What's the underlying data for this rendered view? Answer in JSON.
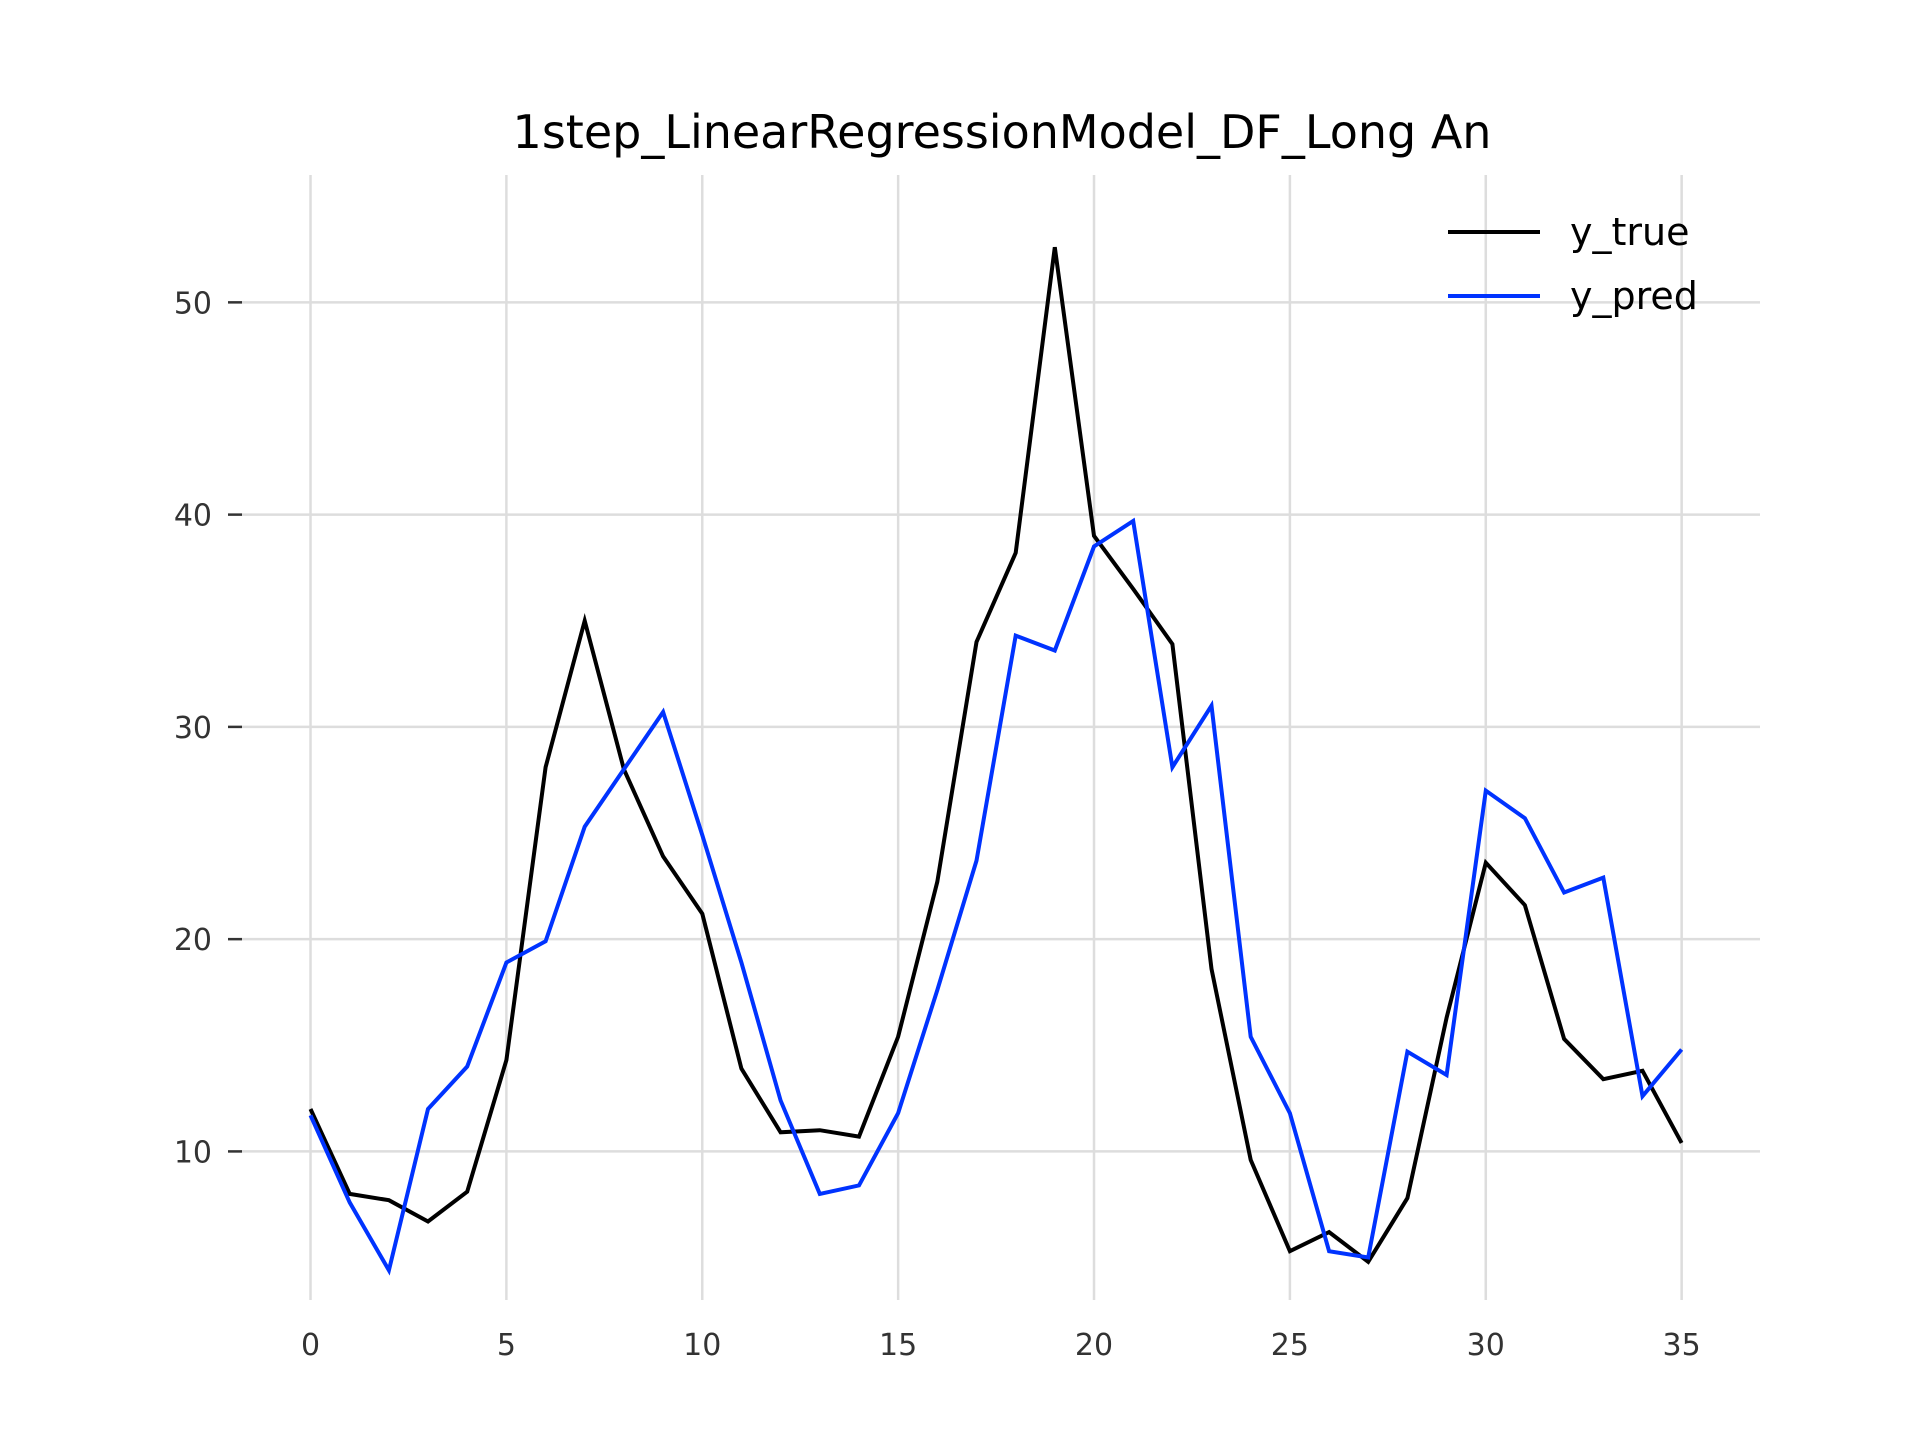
{
  "chart_data": {
    "type": "line",
    "title": "1step_LinearRegressionModel_DF_Long An",
    "xlabel": "",
    "ylabel": "",
    "xlim": [
      -1.8,
      37.0
    ],
    "ylim": [
      3.0,
      56.0
    ],
    "xticks": [
      0,
      5,
      10,
      15,
      20,
      25,
      30,
      35
    ],
    "yticks": [
      10,
      20,
      30,
      40,
      50
    ],
    "grid": true,
    "legend_position": "top-right",
    "x": [
      0,
      1,
      2,
      3,
      4,
      5,
      6,
      7,
      8,
      9,
      10,
      11,
      12,
      13,
      14,
      15,
      16,
      17,
      18,
      19,
      20,
      21,
      22,
      23,
      24,
      25,
      26,
      27,
      28,
      29,
      30,
      31,
      32,
      33,
      34,
      35
    ],
    "series": [
      {
        "name": "y_true",
        "color": "#000000",
        "values": [
          12.0,
          8.0,
          7.7,
          6.7,
          8.1,
          14.3,
          28.1,
          35.0,
          28.0,
          23.9,
          21.2,
          13.9,
          10.9,
          11.0,
          10.7,
          15.4,
          22.7,
          34.0,
          38.2,
          52.6,
          39.0,
          36.5,
          33.9,
          18.6,
          9.6,
          5.3,
          6.2,
          4.8,
          7.8,
          16.3,
          23.6,
          21.6,
          15.3,
          13.4,
          13.8,
          10.4
        ]
      },
      {
        "name": "y_pred",
        "color": "#0033ff",
        "values": [
          11.7,
          7.6,
          4.4,
          12.0,
          14.0,
          18.9,
          19.9,
          25.3,
          28.0,
          30.7,
          24.9,
          18.9,
          12.4,
          8.0,
          8.4,
          11.8,
          17.6,
          23.7,
          34.3,
          33.6,
          38.5,
          39.7,
          28.1,
          31.0,
          15.4,
          11.8,
          5.3,
          5.0,
          14.7,
          13.6,
          27.0,
          25.7,
          22.2,
          22.9,
          12.6,
          14.8
        ]
      }
    ]
  }
}
